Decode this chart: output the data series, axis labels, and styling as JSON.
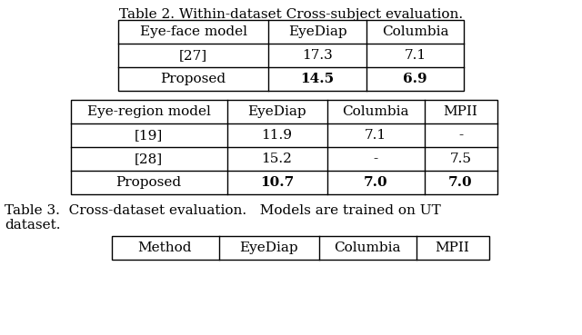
{
  "title2": "Table 2. Within-dataset Cross-subject evaluation.",
  "table2_headers": [
    "Eye-face model",
    "EyeDiap",
    "Columbia"
  ],
  "table2_rows": [
    [
      "[27]",
      "17.3",
      "7.1"
    ],
    [
      "Proposed",
      "14.5",
      "6.9"
    ]
  ],
  "table2_bold_cols": [
    1,
    2
  ],
  "table3_headers": [
    "Eye-region model",
    "EyeDiap",
    "Columbia",
    "MPII"
  ],
  "table3_rows": [
    [
      "[19]",
      "11.9",
      "7.1",
      "-"
    ],
    [
      "[28]",
      "15.2",
      "-",
      "7.5"
    ],
    [
      "Proposed",
      "10.7",
      "7.0",
      "7.0"
    ]
  ],
  "table3_bold_cols": [
    1,
    2,
    3
  ],
  "caption3_line1": "Table 3.  Cross-dataset evaluation.   Models are trained on UT",
  "caption3_line2": "dataset.",
  "table4_headers": [
    "Method",
    "EyeDiap",
    "Columbia",
    "MPII"
  ],
  "bg_color": "#ffffff",
  "font_size": 11
}
